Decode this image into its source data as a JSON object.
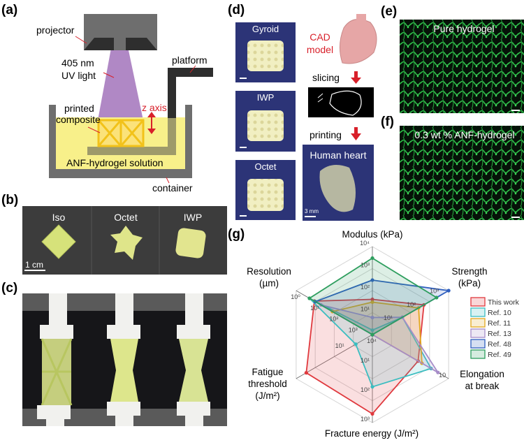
{
  "panels": {
    "a": {
      "label": "(a)",
      "projector": "projector",
      "light_line1": "405 nm",
      "light_line2": "UV light",
      "platform": "platform",
      "printed_line1": "printed",
      "printed_line2": "composite",
      "z_axis": "z axis",
      "solution": "ANF-hydrogel solution",
      "container": "container"
    },
    "b": {
      "label": "(b)",
      "samples": [
        "Iso",
        "Octet",
        "IWP"
      ],
      "scale_bar": "1 cm"
    },
    "c": {
      "label": "(c)"
    },
    "d": {
      "label": "(d)",
      "samples": [
        "Gyroid",
        "IWP",
        "Octet"
      ],
      "cad_line1": "CAD",
      "cad_line2": "model",
      "slicing": "slicing",
      "printing": "printing",
      "heart": "Human heart",
      "scale_bar": "3 mm"
    },
    "e": {
      "label": "(e)",
      "title": "Pure hydrogel"
    },
    "f": {
      "label": "(f)",
      "title": "0.3 wt % ANF-hydrogel"
    },
    "g": {
      "label": "(g)"
    }
  },
  "colors": {
    "accent_red": "#d8202a",
    "uv_light": "#a77bbf",
    "solution": "#f8f08a",
    "micrograph": "#2fbf4a"
  },
  "chart_data": {
    "type": "radar",
    "axes": [
      {
        "label": "Modulus (kPa)",
        "scale": "log",
        "range": [
          1,
          10000
        ],
        "ticks": [
          "10¹",
          "10²",
          "10³",
          "10⁴"
        ],
        "tick_values": [
          10,
          100,
          1000,
          10000
        ]
      },
      {
        "label": "Strength (kPa)",
        "scale": "log",
        "range": [
          1,
          2000
        ],
        "ticks": [
          "10¹",
          "10²",
          "10³"
        ],
        "tick_values": [
          10,
          100,
          1000
        ]
      },
      {
        "label": "Elongation at break",
        "scale": "linear",
        "range": [
          0,
          10
        ],
        "ticks": [
          "10"
        ],
        "tick_values": [
          10
        ]
      },
      {
        "label": "Fracture energy (J/m²)",
        "scale": "log",
        "range": [
          1,
          1000
        ],
        "ticks": [
          "10¹",
          "10²",
          "10³"
        ],
        "tick_values": [
          10,
          100,
          1000
        ]
      },
      {
        "label": "Fatigue threshold (J/m²)",
        "scale": "log",
        "range": [
          1,
          1000
        ],
        "ticks": [
          "10¹"
        ],
        "tick_values": [
          10
        ]
      },
      {
        "label": "Resolution (µm)",
        "scale": "log-reversed",
        "range": [
          10000,
          1
        ],
        "ticks": [
          "10⁰",
          "10¹",
          "10²",
          "10³",
          "10⁴"
        ],
        "tick_values": [
          1,
          10,
          100,
          1000,
          10000
        ]
      }
    ],
    "series": [
      {
        "name": "This work",
        "color": "#e0393e",
        "values": [
          40,
          170,
          6,
          500,
          400,
          9
        ]
      },
      {
        "name": "Ref. 10",
        "color": "#3bbdc0",
        "values": [
          1.6,
          20,
          7.7,
          60,
          4.5,
          5
        ]
      },
      {
        "name": "Ref. 11",
        "color": "#e2a81e",
        "values": [
          30,
          100,
          6.5,
          1,
          1,
          80
        ]
      },
      {
        "name": "Ref. 13",
        "color": "#a68cc8",
        "values": [
          6,
          20,
          8.6,
          1,
          1,
          20
        ]
      },
      {
        "name": "Ref. 48",
        "color": "#2f5fbf",
        "values": [
          300,
          2000,
          0,
          1,
          1,
          10
        ]
      },
      {
        "name": "Ref. 49",
        "color": "#2e9e5e",
        "values": [
          3000,
          600,
          0,
          1,
          1,
          5
        ]
      }
    ],
    "grid": true,
    "legend": "right"
  }
}
